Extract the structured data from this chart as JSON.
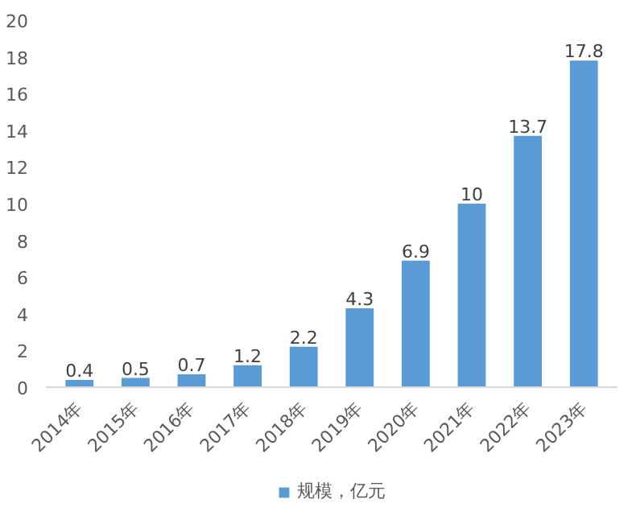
{
  "chart_data": {
    "type": "bar",
    "categories": [
      "2014年",
      "2015年",
      "2016年",
      "2017年",
      "2018年",
      "2019年",
      "2020年",
      "2021年",
      "2022年",
      "2023年"
    ],
    "series": [
      {
        "name": "规模，亿元",
        "color": "#5b9bd5",
        "values": [
          0.4,
          0.5,
          0.7,
          1.2,
          2.2,
          4.3,
          6.9,
          10,
          13.7,
          17.8
        ]
      }
    ],
    "ylim": [
      0,
      20
    ],
    "yticks": [
      0,
      2,
      4,
      6,
      8,
      10,
      12,
      14,
      16,
      18,
      20
    ],
    "data_labels": true,
    "legend": "bottom",
    "grid": false
  }
}
